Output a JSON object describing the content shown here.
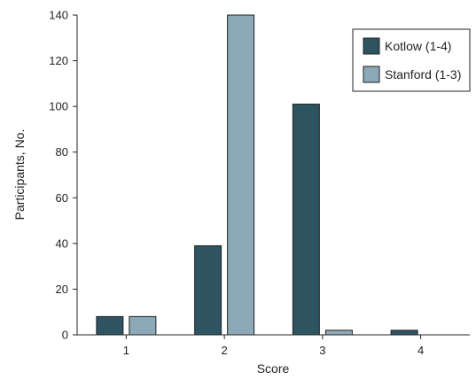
{
  "chart_data": {
    "type": "bar",
    "xlabel": "Score",
    "ylabel": "Participants, No.",
    "categories": [
      "1",
      "2",
      "3",
      "4"
    ],
    "ylim": [
      0,
      140
    ],
    "yticks": [
      0,
      20,
      40,
      60,
      80,
      100,
      120,
      140
    ],
    "grid": false,
    "legend_position": "top-right",
    "series": [
      {
        "name": "Kotlow (1-4)",
        "color": "#2e5361",
        "values": [
          8,
          39,
          101,
          2
        ]
      },
      {
        "name": "Stanford (1-3)",
        "color": "#8ba9b6",
        "values": [
          8,
          140,
          2,
          0
        ]
      }
    ]
  }
}
